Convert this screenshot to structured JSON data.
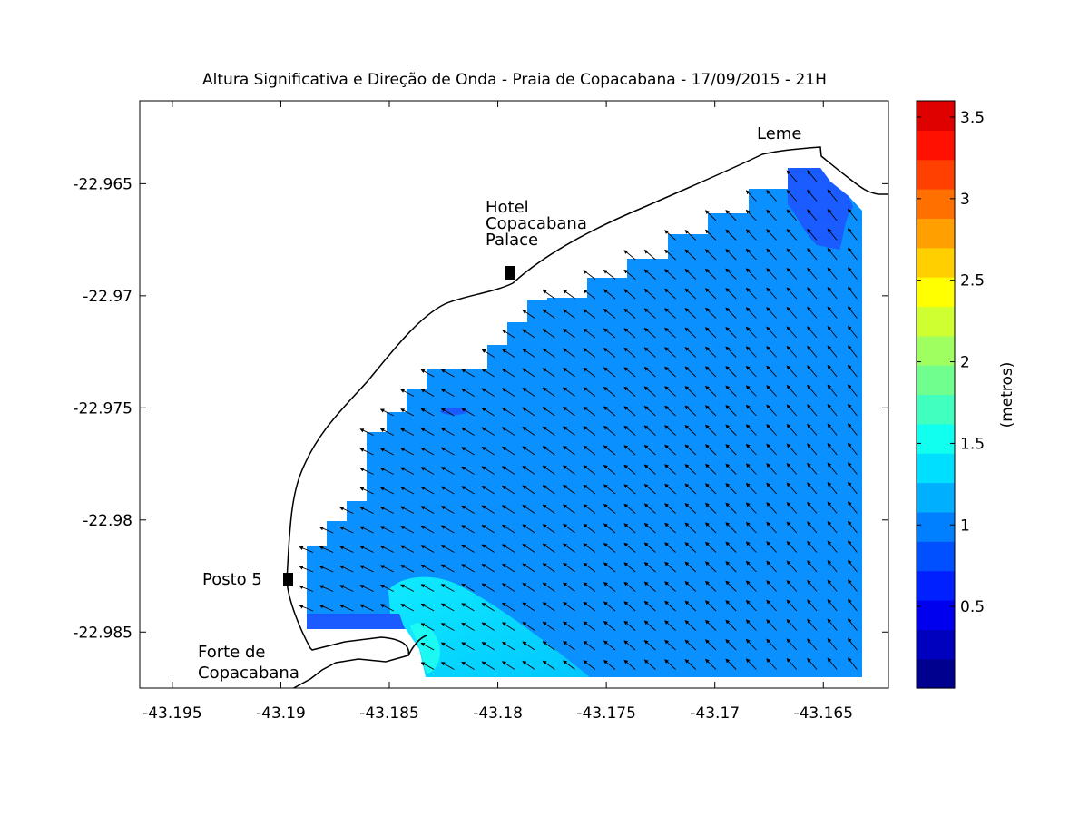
{
  "map": {
    "title": "Altura Significativa e Direção de Onda - Praia de Copacabana - 17/09/2015 - 21H",
    "x_ticks": [
      "-43.195",
      "-43.19",
      "-43.185",
      "-43.18",
      "-43.175",
      "-43.17",
      "-43.165"
    ],
    "y_ticks": [
      "-22.965",
      "-22.97",
      "-22.975",
      "-22.98",
      "-22.985"
    ],
    "places": {
      "leme": "Leme",
      "hotel": [
        "Hotel",
        "Copacabana",
        "Palace"
      ],
      "posto5": "Posto 5",
      "forte": [
        "Forte de",
        "Copacabana"
      ]
    }
  },
  "colorbar": {
    "label": "(metros)",
    "ticks": [
      "0.5",
      "1",
      "1.5",
      "2",
      "2.5",
      "3",
      "3.5"
    ],
    "range": [
      0,
      3.6
    ],
    "colors": [
      "#00008f",
      "#0000bf",
      "#0000ef",
      "#0020ff",
      "#0050ff",
      "#0080ff",
      "#00b0ff",
      "#00dfff",
      "#10ffef",
      "#40ffbf",
      "#70ff8f",
      "#9fff60",
      "#cfff30",
      "#ffff00",
      "#ffcf00",
      "#ff9f00",
      "#ff7000",
      "#ff4000",
      "#ff1000",
      "#df0000"
    ]
  },
  "chart_data": {
    "type": "heatmap",
    "title": "Altura Significativa e Direção de Onda - Praia de Copacabana - 17/09/2015 - 21H",
    "x_unit": "longitude",
    "y_unit": "latitude",
    "xlim": [
      -43.1965,
      -43.162
    ],
    "ylim": [
      -22.9875,
      -22.9613
    ],
    "value_unit": "metros",
    "value_range": [
      0,
      3.6
    ],
    "dominant_value": 1.05,
    "high_zone_value": 1.4,
    "low_zone_value": 0.75,
    "wave_direction": "towards north-west (onshore)",
    "annotations": [
      "Leme",
      "Hotel Copacabana Palace",
      "Posto 5",
      "Forte de Copacabana"
    ]
  }
}
